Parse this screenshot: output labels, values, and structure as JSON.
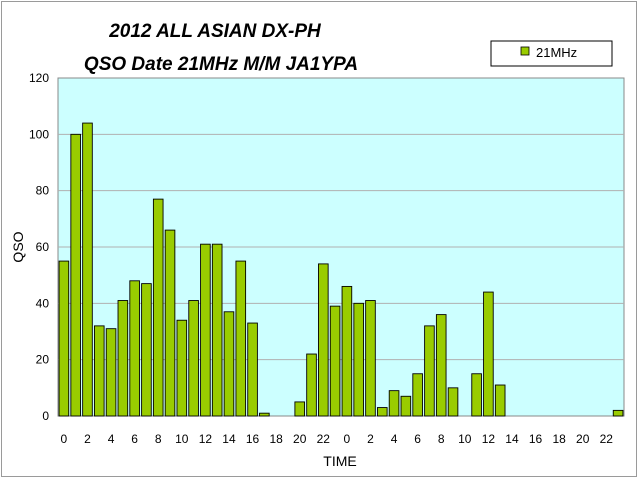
{
  "chart_data": {
    "type": "bar",
    "title": "2012 ALL ASIAN DX-PH",
    "subtitle": "QSO Date 21MHz M/M JA1YPA",
    "xlabel": "TIME",
    "ylabel": "QSO",
    "ylim": [
      0,
      120
    ],
    "yticks": [
      "0",
      "20",
      "40",
      "60",
      "80",
      "100",
      "120"
    ],
    "grid": true,
    "legend_position": "top-right",
    "colors": {
      "bar": "#99cc00",
      "plot_background": "#ccffff",
      "bar_edge": "#000000"
    },
    "categories": [
      "0",
      "1",
      "2",
      "3",
      "4",
      "5",
      "6",
      "7",
      "8",
      "9",
      "10",
      "11",
      "12",
      "13",
      "14",
      "15",
      "16",
      "17",
      "18",
      "19",
      "20",
      "21",
      "22",
      "23",
      "0",
      "1",
      "2",
      "3",
      "4",
      "5",
      "6",
      "7",
      "8",
      "9",
      "10",
      "11",
      "12",
      "13",
      "14",
      "15",
      "16",
      "17",
      "18",
      "19",
      "20",
      "21",
      "22",
      "23"
    ],
    "tick_labels": [
      "0",
      "2",
      "4",
      "6",
      "8",
      "10",
      "12",
      "14",
      "16",
      "18",
      "20",
      "22",
      "0",
      "2",
      "4",
      "6",
      "8",
      "10",
      "12",
      "14",
      "16",
      "18",
      "20",
      "22"
    ],
    "series": [
      {
        "name": "21MHz",
        "values": [
          55,
          100,
          104,
          32,
          31,
          41,
          48,
          47,
          77,
          66,
          34,
          41,
          61,
          61,
          37,
          55,
          33,
          1,
          0,
          0,
          5,
          22,
          54,
          39,
          46,
          40,
          41,
          3,
          9,
          7,
          15,
          32,
          36,
          10,
          0,
          15,
          44,
          11,
          0,
          0,
          0,
          0,
          0,
          0,
          0,
          0,
          0,
          2
        ]
      }
    ]
  }
}
